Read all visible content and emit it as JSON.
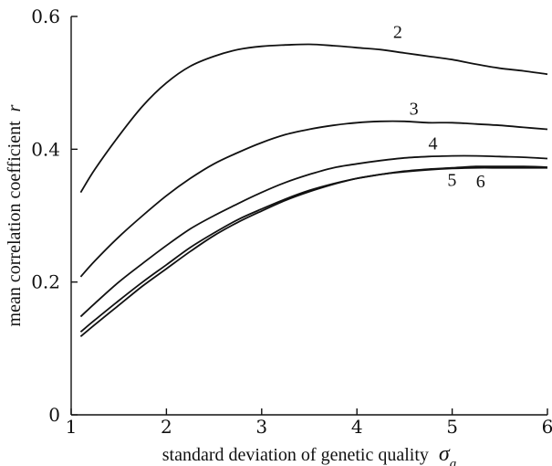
{
  "chart_data": {
    "type": "line",
    "title": "",
    "xlabel": "standard deviation of genetic quality",
    "xlabel_symbol": "σ",
    "xlabel_subscript": "a",
    "ylabel": "mean correlation coefficient",
    "ylabel_symbol": "r",
    "xlim": [
      1,
      6
    ],
    "ylim": [
      0,
      0.6
    ],
    "xticks": [
      1,
      2,
      3,
      4,
      5,
      6
    ],
    "yticks": [
      0,
      0.2,
      0.4,
      0.6
    ],
    "xtick_labels": [
      "1",
      "2",
      "3",
      "4",
      "5",
      "6"
    ],
    "ytick_labels": [
      "0",
      "0.2",
      "0.4",
      "0.6"
    ],
    "grid": false,
    "series": [
      {
        "name": "2",
        "x": [
          1.1,
          1.25,
          1.5,
          1.75,
          2.0,
          2.25,
          2.5,
          2.75,
          3.0,
          3.25,
          3.5,
          3.75,
          4.0,
          4.25,
          4.5,
          4.75,
          5.0,
          5.25,
          5.5,
          5.75,
          6.0
        ],
        "values": [
          0.335,
          0.37,
          0.42,
          0.465,
          0.5,
          0.525,
          0.54,
          0.55,
          0.555,
          0.557,
          0.558,
          0.556,
          0.553,
          0.55,
          0.545,
          0.54,
          0.535,
          0.528,
          0.522,
          0.518,
          0.513
        ]
      },
      {
        "name": "3",
        "x": [
          1.1,
          1.25,
          1.5,
          1.75,
          2.0,
          2.25,
          2.5,
          2.75,
          3.0,
          3.25,
          3.5,
          3.75,
          4.0,
          4.25,
          4.5,
          4.75,
          5.0,
          5.25,
          5.5,
          5.75,
          6.0
        ],
        "values": [
          0.208,
          0.232,
          0.268,
          0.3,
          0.33,
          0.356,
          0.378,
          0.395,
          0.41,
          0.422,
          0.43,
          0.436,
          0.44,
          0.442,
          0.442,
          0.44,
          0.44,
          0.438,
          0.436,
          0.433,
          0.43
        ]
      },
      {
        "name": "4",
        "x": [
          1.1,
          1.25,
          1.5,
          1.75,
          2.0,
          2.25,
          2.5,
          2.75,
          3.0,
          3.25,
          3.5,
          3.75,
          4.0,
          4.25,
          4.5,
          4.75,
          5.0,
          5.25,
          5.5,
          5.75,
          6.0
        ],
        "values": [
          0.148,
          0.168,
          0.2,
          0.228,
          0.255,
          0.28,
          0.3,
          0.318,
          0.335,
          0.35,
          0.362,
          0.372,
          0.378,
          0.383,
          0.387,
          0.389,
          0.39,
          0.39,
          0.389,
          0.388,
          0.386
        ]
      },
      {
        "name": "5",
        "x": [
          1.1,
          1.25,
          1.5,
          1.75,
          2.0,
          2.25,
          2.5,
          2.75,
          3.0,
          3.25,
          3.5,
          3.75,
          4.0,
          4.25,
          4.5,
          4.75,
          5.0,
          5.25,
          5.5,
          5.75,
          6.0
        ],
        "values": [
          0.125,
          0.143,
          0.172,
          0.2,
          0.226,
          0.252,
          0.274,
          0.294,
          0.31,
          0.325,
          0.338,
          0.348,
          0.356,
          0.362,
          0.366,
          0.369,
          0.371,
          0.372,
          0.372,
          0.372,
          0.372
        ]
      },
      {
        "name": "6",
        "x": [
          1.1,
          1.25,
          1.5,
          1.75,
          2.0,
          2.25,
          2.5,
          2.75,
          3.0,
          3.25,
          3.5,
          3.75,
          4.0,
          4.25,
          4.5,
          4.75,
          5.0,
          5.25,
          5.5,
          5.75,
          6.0
        ],
        "values": [
          0.118,
          0.136,
          0.165,
          0.194,
          0.22,
          0.246,
          0.27,
          0.29,
          0.307,
          0.323,
          0.336,
          0.347,
          0.356,
          0.362,
          0.367,
          0.37,
          0.372,
          0.374,
          0.374,
          0.374,
          0.373
        ]
      }
    ]
  }
}
